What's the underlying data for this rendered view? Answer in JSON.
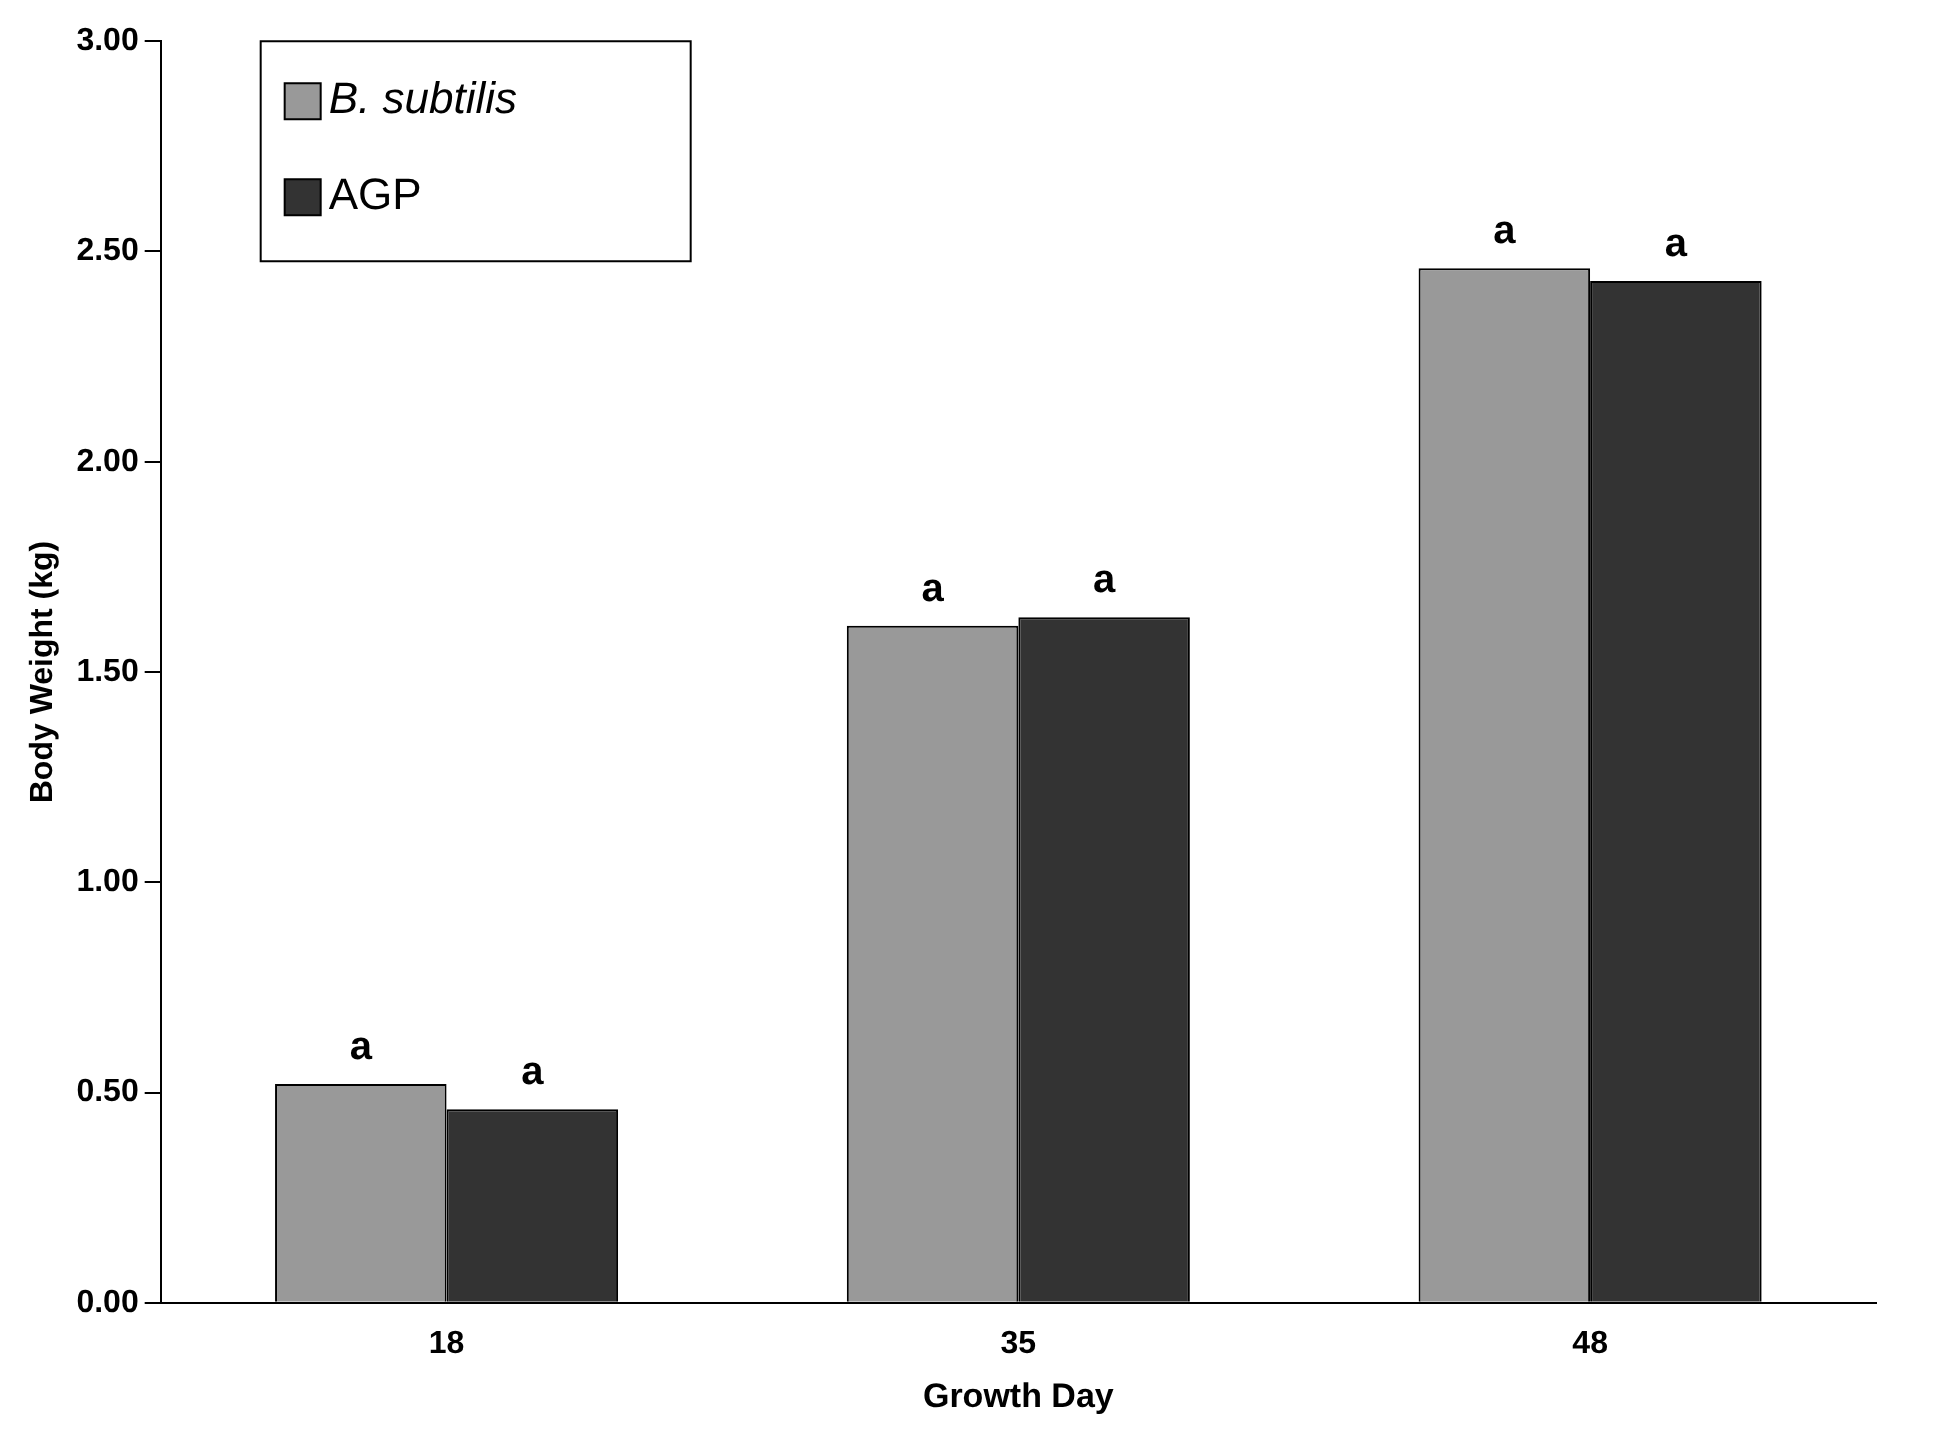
{
  "chart_data": {
    "type": "bar",
    "xlabel": "Growth Day",
    "ylabel": "Body Weight (kg)",
    "categories": [
      "18",
      "35",
      "48"
    ],
    "series": [
      {
        "name": "B. subtilis",
        "color": "#999999",
        "values": [
          0.52,
          1.61,
          2.46
        ]
      },
      {
        "name": "AGP",
        "color": "#333333",
        "values": [
          0.46,
          1.63,
          2.43
        ]
      }
    ],
    "ylim": [
      0,
      3
    ],
    "yticks": [
      {
        "value": 0,
        "label": "0.00"
      },
      {
        "value": 0.5,
        "label": "0.50"
      },
      {
        "value": 1,
        "label": "1.00"
      },
      {
        "value": 1.5,
        "label": "1.50"
      },
      {
        "value": 2,
        "label": "2.00"
      },
      {
        "value": 2.5,
        "label": "2.50"
      },
      {
        "value": 3,
        "label": "3.00"
      }
    ],
    "annotations": [
      {
        "text": "a",
        "x": "18",
        "y": 0.52
      },
      {
        "text": "a",
        "x": "18",
        "y": 0.46
      },
      {
        "text": "a",
        "x": "35",
        "y": 1.61
      },
      {
        "text": "a",
        "x": "35",
        "y": 1.63
      },
      {
        "text": "a",
        "x": "48",
        "y": 2.46
      },
      {
        "text": "a",
        "x": "48",
        "y": 2.43
      }
    ],
    "grid": false,
    "legend": "top left"
  }
}
